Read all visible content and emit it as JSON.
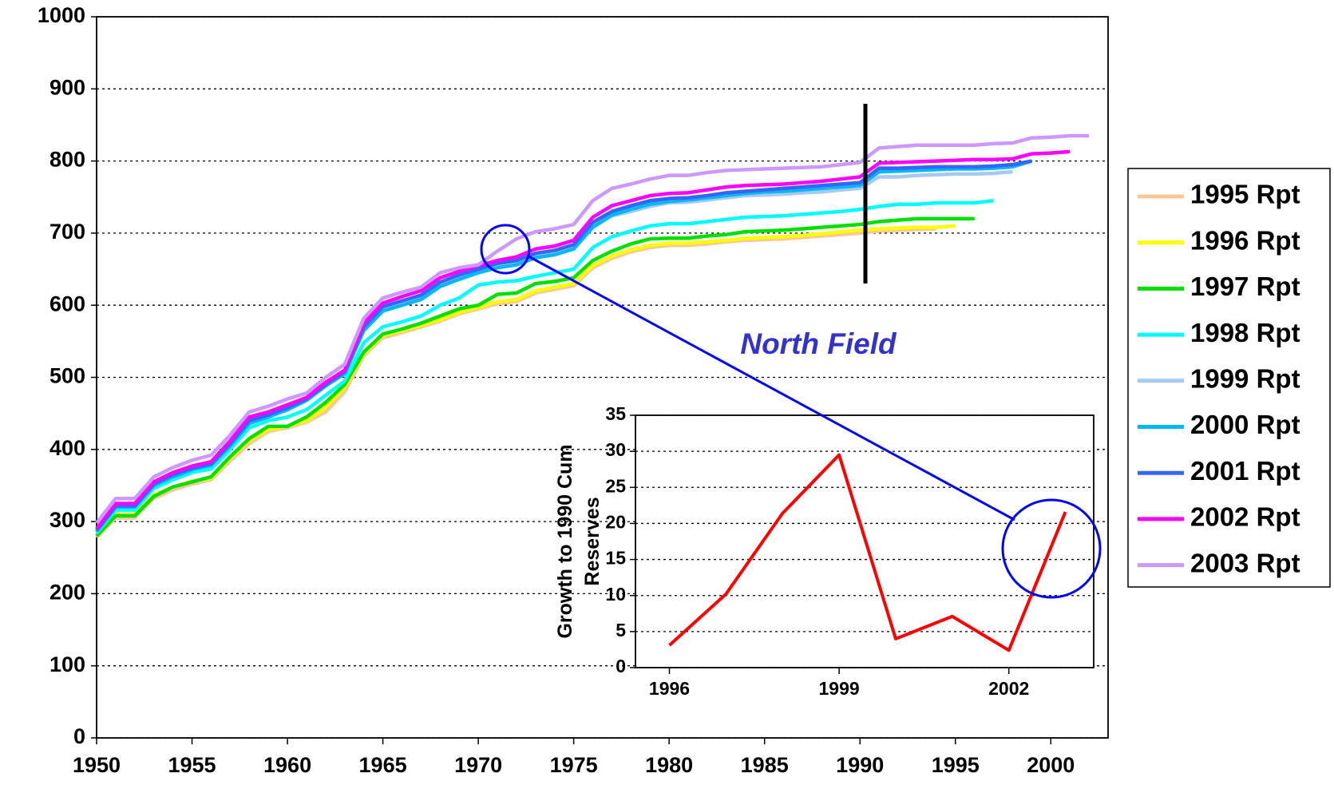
{
  "chart_data": [
    {
      "type": "line",
      "x": [
        1950,
        1951,
        1952,
        1953,
        1954,
        1955,
        1956,
        1957,
        1958,
        1959,
        1960,
        1961,
        1962,
        1963,
        1964,
        1965,
        1966,
        1967,
        1968,
        1969,
        1970,
        1971,
        1972,
        1973,
        1974,
        1975,
        1976,
        1977,
        1978,
        1979,
        1980,
        1981,
        1982,
        1983,
        1984,
        1985,
        1986,
        1987,
        1988,
        1989,
        1990,
        1991,
        1992,
        1993,
        1994,
        1995,
        1996,
        1997,
        1998,
        1999,
        2000,
        2001,
        2002,
        2003
      ],
      "xlim": [
        1950,
        2003
      ],
      "xticks": [
        1950,
        1955,
        1960,
        1965,
        1970,
        1975,
        1980,
        1985,
        1990,
        1995,
        2000
      ],
      "ylim": [
        0,
        1000
      ],
      "yticks": [
        0,
        100,
        200,
        300,
        400,
        500,
        600,
        700,
        800,
        900,
        1000
      ],
      "grid": true,
      "legend": "right",
      "annotation": "North Field",
      "series": [
        {
          "name": "1995 Rpt",
          "color": "#f8c898",
          "values": [
            278,
            305,
            305,
            332,
            344,
            352,
            358,
            384,
            408,
            425,
            430,
            438,
            452,
            480,
            530,
            555,
            562,
            570,
            578,
            588,
            595,
            602,
            605,
            617,
            622,
            627,
            652,
            665,
            674,
            680,
            683,
            683,
            685,
            688,
            690,
            691,
            692,
            694,
            696,
            698,
            700,
            703,
            704,
            705,
            706,
            null,
            null,
            null,
            null,
            null,
            null,
            null,
            null,
            null
          ]
        },
        {
          "name": "1996 Rpt",
          "color": "#ffff00",
          "values": [
            282,
            310,
            310,
            337,
            348,
            356,
            360,
            388,
            412,
            428,
            432,
            440,
            458,
            486,
            532,
            558,
            565,
            572,
            580,
            590,
            597,
            605,
            608,
            620,
            625,
            630,
            655,
            668,
            677,
            683,
            686,
            686,
            688,
            690,
            693,
            694,
            695,
            697,
            699,
            702,
            704,
            706,
            707,
            708,
            708,
            710,
            null,
            null,
            null,
            null,
            null,
            null,
            null,
            null
          ]
        },
        {
          "name": "1997 Rpt",
          "color": "#00e000",
          "values": [
            280,
            308,
            308,
            335,
            348,
            355,
            362,
            390,
            415,
            432,
            432,
            445,
            465,
            490,
            535,
            560,
            567,
            575,
            585,
            595,
            600,
            615,
            617,
            630,
            633,
            638,
            662,
            675,
            685,
            692,
            693,
            693,
            696,
            698,
            702,
            703,
            704,
            706,
            708,
            710,
            712,
            716,
            718,
            720,
            720,
            720,
            720,
            null,
            null,
            null,
            null,
            null,
            null,
            null
          ]
        },
        {
          "name": "1998 Rpt",
          "color": "#00ffff",
          "values": [
            284,
            316,
            316,
            346,
            358,
            368,
            373,
            400,
            430,
            440,
            445,
            455,
            475,
            495,
            548,
            570,
            577,
            585,
            600,
            610,
            628,
            632,
            634,
            640,
            645,
            650,
            680,
            695,
            703,
            710,
            713,
            713,
            716,
            719,
            722,
            723,
            724,
            726,
            728,
            730,
            733,
            737,
            740,
            740,
            742,
            742,
            742,
            745,
            null,
            null,
            null,
            null,
            null,
            null
          ]
        },
        {
          "name": "1999 Rpt",
          "color": "#a8c8f0",
          "values": [
            287,
            321,
            321,
            351,
            363,
            373,
            379,
            406,
            438,
            447,
            457,
            469,
            489,
            506,
            568,
            595,
            603,
            611,
            629,
            639,
            648,
            655,
            658,
            668,
            672,
            680,
            710,
            724,
            730,
            737,
            742,
            743,
            746,
            749,
            752,
            753,
            754,
            756,
            757,
            760,
            762,
            778,
            778,
            780,
            781,
            782,
            782,
            783,
            785,
            null,
            null,
            null,
            null,
            null
          ]
        },
        {
          "name": "2000 Rpt",
          "color": "#00b8f0",
          "values": [
            286,
            320,
            320,
            350,
            362,
            372,
            378,
            405,
            436,
            445,
            455,
            468,
            488,
            505,
            565,
            592,
            600,
            608,
            626,
            636,
            645,
            652,
            656,
            666,
            670,
            678,
            708,
            725,
            733,
            740,
            744,
            746,
            749,
            752,
            755,
            757,
            758,
            760,
            762,
            764,
            766,
            785,
            786,
            787,
            788,
            789,
            789,
            790,
            792,
            800,
            null,
            null,
            null,
            null
          ]
        },
        {
          "name": "2001 Rpt",
          "color": "#3366ff",
          "values": [
            288,
            322,
            322,
            352,
            365,
            374,
            380,
            408,
            440,
            448,
            458,
            470,
            490,
            508,
            570,
            598,
            606,
            614,
            632,
            642,
            650,
            658,
            662,
            672,
            676,
            684,
            715,
            730,
            738,
            745,
            748,
            749,
            752,
            756,
            758,
            760,
            762,
            764,
            766,
            768,
            770,
            790,
            790,
            791,
            792,
            792,
            792,
            793,
            795,
            800,
            null,
            null,
            null,
            null
          ]
        },
        {
          "name": "2002 Rpt",
          "color": "#ff00ff",
          "values": [
            290,
            325,
            325,
            355,
            368,
            377,
            383,
            412,
            445,
            452,
            462,
            472,
            493,
            510,
            575,
            603,
            612,
            620,
            638,
            647,
            655,
            662,
            667,
            678,
            682,
            690,
            722,
            738,
            745,
            752,
            755,
            756,
            760,
            764,
            766,
            767,
            768,
            770,
            772,
            775,
            778,
            797,
            798,
            799,
            800,
            801,
            802,
            802,
            803,
            810,
            811,
            813,
            null,
            null
          ]
        },
        {
          "name": "2003 Rpt",
          "color": "#cc99ff",
          "values": [
            298,
            332,
            332,
            362,
            375,
            385,
            392,
            420,
            452,
            460,
            470,
            478,
            500,
            518,
            582,
            610,
            618,
            625,
            645,
            652,
            656,
            675,
            692,
            702,
            706,
            712,
            745,
            762,
            768,
            775,
            780,
            780,
            784,
            787,
            788,
            789,
            790,
            791,
            792,
            795,
            798,
            818,
            820,
            822,
            822,
            822,
            822,
            824,
            825,
            832,
            833,
            835,
            835,
            null
          ]
        }
      ]
    },
    {
      "type": "line",
      "y_label": "Growth to 1990 Cum Reserves",
      "x": [
        1996,
        1997,
        1998,
        1999,
        2000,
        2001,
        2002,
        2003
      ],
      "values": [
        3.1,
        10.2,
        21.4,
        29.5,
        4.0,
        7.1,
        2.4,
        21.6
      ],
      "color": "#ff0000",
      "xlim": [
        1995.4,
        2003.5
      ],
      "xticks": [
        1996,
        1999,
        2002
      ],
      "ylim": [
        0,
        35
      ],
      "yticks": [
        0,
        5,
        10,
        15,
        20,
        25,
        30,
        35
      ],
      "grid": true
    }
  ]
}
